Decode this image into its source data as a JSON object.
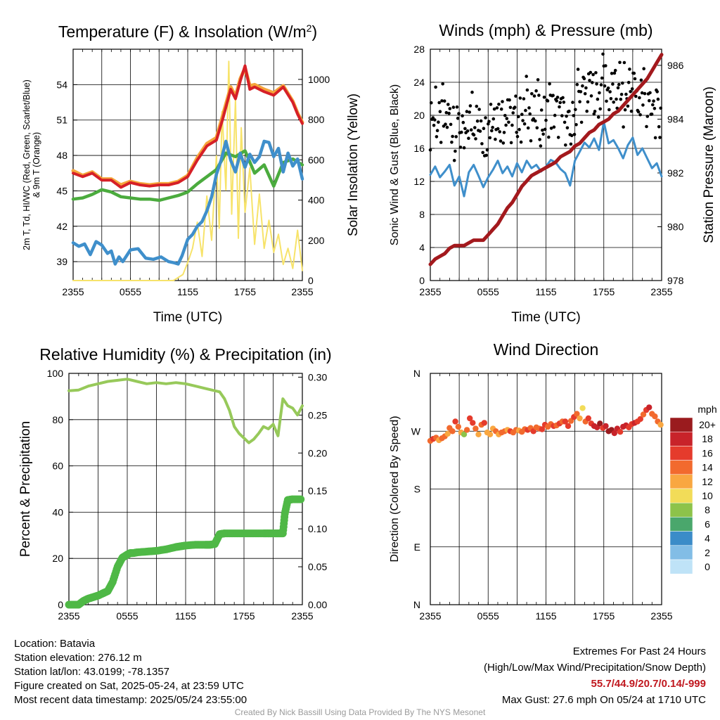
{
  "colors": {
    "red": "#d62027",
    "orange": "#f5a53a",
    "green": "#4bab3e",
    "blue": "#3f8fcb",
    "yellow": "#f7e36a",
    "black": "#000000",
    "maroon": "#a3191d",
    "rh_line": "#97c95a",
    "precip": "#4fb846"
  },
  "chart_data": [
    {
      "type": "line",
      "title": "Temperature (F) & Insolation (W/m²)",
      "xlabel": "Time (UTC)",
      "ylabel": "2m T, T<sub>d</sub>, HI/WC (Red, Green, Scarlet/Blue) & 9m T (Orange)",
      "ylabel_lines": [
        "2m T, Td, HI/WC (Red, Green, Scarlet/Blue)",
        "& 9m T (Orange)"
      ],
      "y2label": "Solar Insolation (Yellow)",
      "x_ticks": [
        "2355",
        "0555",
        "1155",
        "1755",
        "2355"
      ],
      "y_ticks": [
        "39",
        "42",
        "45",
        "48",
        "51",
        "54"
      ],
      "y2_ticks": [
        "0",
        "200",
        "400",
        "600",
        "800",
        "1000"
      ],
      "ylim": [
        37.4,
        57.0
      ],
      "y2lim": [
        0,
        1150
      ],
      "xlim": [
        0,
        24
      ],
      "series": [
        {
          "key": "solar",
          "axis": "y2",
          "color": "yellow",
          "x": [
            0,
            3,
            6,
            10.5,
            11.5,
            12,
            12.5,
            13,
            13.5,
            14,
            14.5,
            15,
            15.3,
            15.6,
            16,
            16.3,
            16.6,
            17,
            17.3,
            17.6,
            18,
            18.5,
            19,
            19.5,
            20,
            20.5,
            21,
            21.5,
            22,
            22.5,
            23,
            23.5,
            24
          ],
          "values": [
            0,
            0,
            0,
            0,
            30,
            90,
            160,
            290,
            120,
            420,
            200,
            620,
            260,
            840,
            450,
            1090,
            330,
            900,
            210,
            760,
            340,
            560,
            180,
            430,
            160,
            300,
            140,
            230,
            80,
            160,
            60,
            250,
            50
          ]
        },
        {
          "key": "orange",
          "color": "orange",
          "x": [
            0,
            1,
            2,
            3,
            4,
            5,
            6,
            7,
            8,
            9,
            10,
            11,
            12,
            13,
            14,
            15,
            15.7,
            16.5,
            17,
            17.5,
            18,
            18.5,
            19,
            20,
            21,
            22,
            23,
            23.5,
            24
          ],
          "values": [
            46.7,
            46.3,
            46.6,
            46.0,
            46.0,
            45.5,
            45.8,
            45.6,
            45.5,
            45.6,
            45.6,
            45.8,
            46.3,
            47.8,
            49.0,
            49.5,
            51.5,
            53.8,
            53.0,
            54.5,
            55.4,
            53.9,
            54.0,
            53.6,
            53.3,
            53.9,
            52.6,
            51.6,
            50.8
          ]
        },
        {
          "key": "red",
          "color": "red",
          "x": [
            0,
            1,
            2,
            3,
            4,
            5,
            6,
            7,
            8,
            9,
            10,
            11,
            12,
            13,
            14,
            15,
            15.7,
            16.5,
            17,
            17.5,
            18,
            18.5,
            19,
            20,
            21,
            22,
            23,
            23.5,
            24
          ],
          "values": [
            46.5,
            46.2,
            46.5,
            45.9,
            45.9,
            45.3,
            45.7,
            45.5,
            45.4,
            45.5,
            45.5,
            45.7,
            46.2,
            47.6,
            48.8,
            49.3,
            51.2,
            53.6,
            52.8,
            54.3,
            55.6,
            53.6,
            53.8,
            53.4,
            53.1,
            53.8,
            52.5,
            51.5,
            50.7
          ]
        },
        {
          "key": "green",
          "color": "green",
          "x": [
            0,
            1,
            2,
            3,
            4,
            5,
            6,
            7,
            8,
            9,
            10,
            11,
            12,
            13,
            14,
            15,
            16,
            17,
            18,
            19,
            20,
            21,
            22,
            23,
            24
          ],
          "values": [
            44.3,
            44.4,
            44.7,
            45.1,
            44.9,
            44.5,
            44.4,
            44.3,
            44.3,
            44.2,
            44.4,
            44.6,
            44.9,
            45.6,
            46.2,
            46.8,
            48.2,
            47.9,
            48.4,
            46.5,
            47.2,
            45.4,
            47.4,
            47.7,
            47.2
          ]
        },
        {
          "key": "blue",
          "color": "blue",
          "x": [
            0,
            0.6,
            1.2,
            1.8,
            2.4,
            3,
            3.6,
            4,
            4.4,
            4.8,
            5.2,
            6,
            6.8,
            7.6,
            8.4,
            9.2,
            10,
            10.6,
            11,
            11.4,
            12,
            12.5,
            13,
            13.5,
            14,
            14.5,
            15,
            15.5,
            16,
            16.5,
            17,
            17.5,
            18,
            18.5,
            19,
            19.5,
            20,
            20.5,
            21,
            21.5,
            22,
            22.5,
            23,
            23.5,
            24
          ],
          "values": [
            40.6,
            40.3,
            40.5,
            39.6,
            40.7,
            40.4,
            39.7,
            39.9,
            38.8,
            39.4,
            39.0,
            40.0,
            40.1,
            39.3,
            39.2,
            39.4,
            39.0,
            38.9,
            38.8,
            39.5,
            40.9,
            41.3,
            42.0,
            42.4,
            43.3,
            44.5,
            46.4,
            47.6,
            49.2,
            47.6,
            46.6,
            48.2,
            47.0,
            48.1,
            47.4,
            47.9,
            49.2,
            49.1,
            47.9,
            48.6,
            46.6,
            48.2,
            47.1,
            47.7,
            46.0
          ]
        }
      ]
    },
    {
      "type": "line",
      "title": "Winds (mph) & Pressure (mb)",
      "xlabel": "Time (UTC)",
      "ylabel": "Sonic Wind & Gust (Blue, Black)",
      "y2label": "Station Pressure (Maroon)",
      "x_ticks": [
        "2355",
        "0555",
        "1155",
        "1755",
        "2355"
      ],
      "y_ticks": [
        "0",
        "4",
        "8",
        "12",
        "16",
        "20",
        "24",
        "28"
      ],
      "y2_ticks": [
        "978",
        "980",
        "982",
        "984",
        "986"
      ],
      "ylim": [
        0,
        28
      ],
      "y2lim": [
        978,
        986.6
      ],
      "xlim": [
        0,
        24
      ],
      "series": [
        {
          "key": "wind",
          "color": "blue",
          "x": [
            0,
            0.5,
            1,
            1.5,
            2,
            2.5,
            3,
            3.5,
            4,
            4.5,
            5,
            5.5,
            6,
            6.5,
            7,
            7.5,
            8,
            8.5,
            9,
            9.5,
            10,
            10.5,
            11,
            11.5,
            12,
            12.5,
            13,
            13.5,
            14,
            14.5,
            15,
            15.5,
            16,
            16.5,
            17,
            17.5,
            18,
            18.5,
            19,
            19.5,
            20,
            20.5,
            21,
            21.5,
            22,
            22.5,
            23,
            23.5,
            24
          ],
          "values": [
            12.8,
            13.8,
            12.5,
            13.2,
            14.0,
            11.5,
            12.6,
            10.2,
            13.1,
            14.0,
            12.7,
            11.3,
            12.5,
            13.4,
            14.5,
            13.0,
            13.8,
            12.6,
            14.2,
            13.1,
            14.5,
            13.6,
            14.0,
            13.2,
            13.8,
            14.6,
            14.3,
            13.5,
            13.0,
            11.5,
            14.5,
            15.6,
            16.7,
            16.1,
            17.2,
            15.8,
            19.2,
            16.6,
            17.0,
            16.0,
            14.8,
            16.4,
            17.3,
            15.2,
            16.0,
            14.8,
            13.6,
            14.2,
            12.6
          ]
        },
        {
          "key": "pressure",
          "axis": "y2",
          "color": "maroon",
          "x": [
            0,
            0.5,
            1,
            1.5,
            2,
            2.5,
            3,
            3.5,
            4,
            4.5,
            5,
            5.5,
            6,
            6.5,
            7,
            7.5,
            8,
            8.5,
            9,
            9.5,
            10,
            10.5,
            11,
            11.5,
            12,
            12.5,
            13,
            13.5,
            14,
            14.5,
            15,
            15.5,
            16,
            16.5,
            17,
            17.5,
            18,
            18.5,
            19,
            19.5,
            20,
            20.5,
            21,
            21.5,
            22,
            22.5,
            23,
            23.5,
            24
          ],
          "values": [
            978.6,
            978.8,
            978.9,
            979.0,
            979.2,
            979.3,
            979.3,
            979.3,
            979.4,
            979.5,
            979.5,
            979.5,
            979.7,
            979.9,
            980.1,
            980.4,
            980.7,
            980.9,
            981.2,
            981.5,
            981.7,
            981.9,
            982.0,
            982.1,
            982.2,
            982.3,
            982.4,
            982.6,
            982.7,
            982.8,
            983.0,
            983.1,
            983.3,
            983.5,
            983.6,
            983.8,
            983.9,
            984.0,
            984.2,
            984.3,
            984.5,
            984.7,
            984.9,
            985.1,
            985.3,
            985.5,
            985.8,
            986.1,
            986.4
          ]
        }
      ]
    },
    {
      "type": "line",
      "title": "Relative Humidity (%) & Precipitation (in)",
      "ylabel": "Percent & Precipitation",
      "x_ticks": [
        "2355",
        "0555",
        "1155",
        "1755",
        "2355"
      ],
      "y_ticks": [
        "0",
        "20",
        "40",
        "60",
        "80",
        "100"
      ],
      "y2_ticks": [
        "0.00",
        "0.05",
        "0.10",
        "0.15",
        "0.20",
        "0.25",
        "0.30"
      ],
      "ylim": [
        0,
        100
      ],
      "y2lim": [
        0,
        0.305
      ],
      "xlim": [
        0,
        24
      ],
      "series": [
        {
          "key": "rh",
          "color": "rh_line",
          "x": [
            0,
            1,
            2,
            3,
            4,
            5,
            6,
            7,
            8,
            9,
            10,
            11,
            12,
            13,
            14,
            15,
            15.5,
            16,
            16.5,
            17,
            17.5,
            18,
            18.5,
            19,
            19.5,
            20,
            20.5,
            21,
            21.5,
            22,
            22.5,
            23,
            23.5,
            24
          ],
          "values": [
            92.5,
            92.8,
            94.5,
            95.5,
            96.5,
            97.0,
            97.5,
            96.5,
            95.5,
            96.0,
            95.5,
            96.0,
            95.5,
            94.5,
            93.5,
            92.5,
            92.0,
            89.0,
            84.0,
            77.0,
            74.0,
            72.0,
            70.0,
            71.5,
            74.0,
            77.0,
            76.0,
            78.0,
            73.0,
            89.0,
            86.0,
            85.0,
            82.0,
            86.0
          ]
        },
        {
          "key": "precip",
          "axis": "y2",
          "color": "precip",
          "x": [
            0,
            1,
            1.5,
            2,
            2.5,
            3,
            3.5,
            4,
            4.5,
            5,
            5.5,
            6,
            6.3,
            6.6,
            7,
            8,
            9,
            10,
            11,
            11.5,
            12,
            13,
            14,
            14.5,
            15,
            15.5,
            16,
            17,
            18,
            19,
            20,
            20.5,
            21,
            21.5,
            22,
            22.2,
            22.5,
            23,
            24
          ],
          "values": [
            0.0,
            0.0,
            0.005,
            0.008,
            0.01,
            0.012,
            0.015,
            0.018,
            0.03,
            0.05,
            0.062,
            0.066,
            0.068,
            0.068,
            0.069,
            0.07,
            0.071,
            0.073,
            0.076,
            0.077,
            0.078,
            0.079,
            0.079,
            0.079,
            0.08,
            0.093,
            0.094,
            0.094,
            0.094,
            0.094,
            0.094,
            0.094,
            0.094,
            0.094,
            0.094,
            0.12,
            0.138,
            0.139,
            0.139
          ]
        }
      ]
    },
    {
      "type": "scatter",
      "title": "Wind Direction",
      "ylabel": "Direction (Colored By Speed)",
      "x_ticks": [
        "2355",
        "0555",
        "1155",
        "1755",
        "2355"
      ],
      "y_ticks": [
        "N",
        "E",
        "S",
        "W",
        "N"
      ],
      "ylim": [
        0,
        360
      ],
      "xlim": [
        0,
        24
      ],
      "colorbar_title": "mph",
      "colorbar_labels": [
        "20+",
        "18",
        "16",
        "14",
        "12",
        "10",
        "8",
        "6",
        "4",
        "2",
        "0"
      ],
      "colorbar_colors": [
        "#9a1b1e",
        "#c8232a",
        "#e53b2c",
        "#f26a2e",
        "#f9a741",
        "#f2dc58",
        "#8dc34a",
        "#4aa76c",
        "#3b8cc8",
        "#82bde6",
        "#bfe3f7"
      ],
      "x": [
        0,
        0.3,
        0.6,
        0.9,
        1.2,
        1.5,
        1.8,
        2.0,
        2.3,
        2.6,
        2.9,
        3.2,
        3.5,
        3.8,
        4.1,
        4.4,
        4.7,
        5.0,
        5.3,
        5.6,
        5.9,
        6.2,
        6.5,
        6.8,
        7.1,
        7.4,
        7.7,
        8.0,
        8.3,
        8.6,
        8.9,
        9.2,
        9.5,
        9.8,
        10.1,
        10.4,
        10.7,
        11.0,
        11.3,
        11.6,
        11.9,
        12.2,
        12.5,
        12.8,
        13.1,
        13.4,
        13.7,
        14.0,
        14.3,
        14.6,
        14.9,
        15.2,
        15.5,
        15.8,
        16.1,
        16.4,
        16.7,
        17.0,
        17.3,
        17.6,
        17.9,
        18.2,
        18.5,
        18.8,
        19.1,
        19.4,
        19.7,
        20.0,
        20.3,
        20.6,
        20.9,
        21.2,
        21.5,
        21.8,
        22.1,
        22.4,
        22.7,
        23.0,
        23.3,
        23.6,
        23.9
      ],
      "values": [
        255,
        258,
        260,
        256,
        259,
        262,
        266,
        275,
        270,
        285,
        277,
        268,
        265,
        272,
        290,
        283,
        274,
        265,
        280,
        283,
        268,
        265,
        274,
        270,
        265,
        268,
        270,
        272,
        270,
        268,
        272,
        271,
        269,
        273,
        272,
        275,
        270,
        276,
        274,
        273,
        280,
        277,
        281,
        278,
        279,
        282,
        285,
        285,
        278,
        286,
        292,
        297,
        290,
        306,
        285,
        290,
        282,
        278,
        276,
        282,
        275,
        278,
        270,
        272,
        267,
        274,
        269,
        277,
        279,
        276,
        281,
        283,
        285,
        289,
        296,
        303,
        307,
        297,
        293,
        285,
        280
      ],
      "speeds": [
        14,
        15,
        13,
        12,
        14,
        13,
        11,
        13,
        14,
        15,
        13,
        12,
        8,
        14,
        15,
        16,
        13,
        12,
        14,
        15,
        12,
        11,
        12,
        13,
        12,
        14,
        13,
        12,
        15,
        14,
        13,
        12,
        14,
        13,
        15,
        14,
        16,
        13,
        14,
        15,
        16,
        13,
        14,
        15,
        14,
        16,
        13,
        15,
        16,
        14,
        15,
        13,
        12,
        10,
        13,
        15,
        16,
        18,
        17,
        19,
        16,
        18,
        19,
        20,
        17,
        18,
        16,
        17,
        18,
        16,
        15,
        17,
        16,
        15,
        13,
        15,
        18,
        13,
        14,
        13,
        12
      ]
    }
  ],
  "footer": {
    "location": "Location: Batavia",
    "elevation": "Station elevation: 276.12 m",
    "latlon": "Station lat/lon: 43.0199; -78.1357",
    "created": "Figure created on Sat, 2025-05-24, at 23:59 UTC",
    "recent": "Most recent data timestamp: 2025/05/24 23:55:00",
    "extremes_title": "Extremes For Past 24 Hours",
    "extremes_sub": "(High/Low/Max Wind/Precipitation/Snow Depth)",
    "extremes_values": "55.7/44.9/20.7/0.14/-999",
    "max_gust": "Max Gust: 27.6 mph On 05/24 at 1710 UTC",
    "credit": "Created By Nick Bassill Using Data Provided By The NYS Mesonet"
  }
}
